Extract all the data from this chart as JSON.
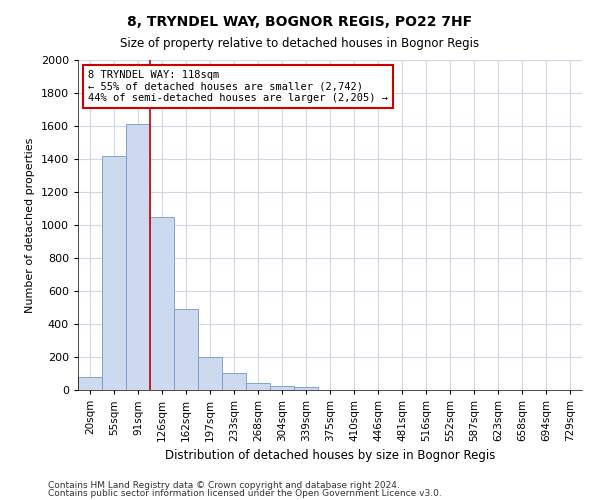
{
  "title1": "8, TRYNDEL WAY, BOGNOR REGIS, PO22 7HF",
  "title2": "Size of property relative to detached houses in Bognor Regis",
  "xlabel": "Distribution of detached houses by size in Bognor Regis",
  "ylabel": "Number of detached properties",
  "categories": [
    "20sqm",
    "55sqm",
    "91sqm",
    "126sqm",
    "162sqm",
    "197sqm",
    "233sqm",
    "268sqm",
    "304sqm",
    "339sqm",
    "375sqm",
    "410sqm",
    "446sqm",
    "481sqm",
    "516sqm",
    "552sqm",
    "587sqm",
    "623sqm",
    "658sqm",
    "694sqm",
    "729sqm"
  ],
  "values": [
    80,
    1420,
    1610,
    1050,
    490,
    200,
    105,
    40,
    25,
    20,
    0,
    0,
    0,
    0,
    0,
    0,
    0,
    0,
    0,
    0,
    0
  ],
  "bar_color": "#ccd9ef",
  "bar_edge_color": "#7099c8",
  "vline_color": "#cc0000",
  "annotation_text": "8 TRYNDEL WAY: 118sqm\n← 55% of detached houses are smaller (2,742)\n44% of semi-detached houses are larger (2,205) →",
  "annotation_box_color": "white",
  "annotation_box_edge": "#cc0000",
  "ylim": [
    0,
    2000
  ],
  "yticks": [
    0,
    200,
    400,
    600,
    800,
    1000,
    1200,
    1400,
    1600,
    1800,
    2000
  ],
  "footnote1": "Contains HM Land Registry data © Crown copyright and database right 2024.",
  "footnote2": "Contains public sector information licensed under the Open Government Licence v3.0.",
  "background_color": "#ffffff",
  "plot_bg_color": "#ffffff",
  "grid_color": "#d0d8e8"
}
